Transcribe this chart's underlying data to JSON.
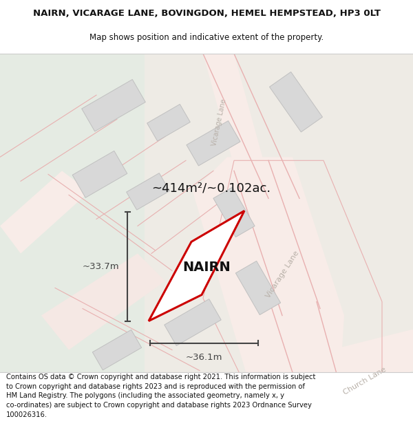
{
  "title_line1": "NAIRN, VICARAGE LANE, BOVINGDON, HEMEL HEMPSTEAD, HP3 0LT",
  "title_line2": "Map shows position and indicative extent of the property.",
  "property_label": "NAIRN",
  "area_label": "~414m²/~0.102ac.",
  "width_label": "~36.1m",
  "height_label": "~33.7m",
  "footer_lines": [
    "Contains OS data © Crown copyright and database right 2021. This information is subject",
    "to Crown copyright and database rights 2023 and is reproduced with the permission of",
    "HM Land Registry. The polygons (including the associated geometry, namely x, y",
    "co-ordinates) are subject to Crown copyright and database rights 2023 Ordnance Survey",
    "100026316."
  ],
  "map_bg_left": "#e8ede8",
  "map_bg_right": "#f0eeea",
  "road_fill": "#f5ebe8",
  "road_line": "#e8b8b8",
  "building_fill": "#d8d8d8",
  "building_edge": "#c0c0c0",
  "property_fill": "#ffffff",
  "property_edge": "#cc0000",
  "dim_color": "#444444",
  "road_label_color": "#b8b0a8",
  "title_fontsize": 9.5,
  "subtitle_fontsize": 8.5,
  "property_label_fontsize": 14,
  "area_fontsize": 13,
  "dim_fontsize": 9.5,
  "footer_fontsize": 7.2
}
